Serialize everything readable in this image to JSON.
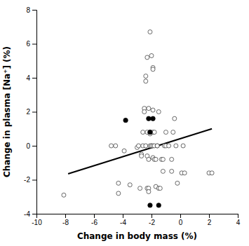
{
  "chart_data": {
    "type": "scatter",
    "xlabel": "Change in body mass (%)",
    "ylabel": "Change in plasma [Na⁺] (%)",
    "xlim": [
      -10,
      4
    ],
    "ylim": [
      -4,
      8
    ],
    "xticks": [
      -10,
      -8,
      -6,
      -4,
      -2,
      0,
      2,
      4
    ],
    "yticks": [
      -4,
      -2,
      0,
      2,
      4,
      6,
      8
    ],
    "series": [
      {
        "type": "scatter",
        "marker": "open",
        "color": "#444444",
        "x": [
          -8.1,
          -4.8,
          -4.5,
          -4.3,
          -4.3,
          -3.9,
          -3.5,
          -3.0,
          -2.9,
          -2.8,
          -2.7,
          -2.7,
          -2.6,
          -2.6,
          -2.5,
          -2.5,
          -2.4,
          -2.4,
          -2.4,
          -2.3,
          -2.3,
          -2.3,
          -2.3,
          -2.2,
          -2.2,
          -2.2,
          -2.2,
          -2.1,
          -2.1,
          -2.1,
          -2.1,
          -2.0,
          -2.0,
          -2.0,
          -1.9,
          -1.9,
          -1.9,
          -1.9,
          -1.9,
          -1.9,
          -1.8,
          -1.8,
          -1.8,
          -1.7,
          -1.7,
          -1.6,
          -1.6,
          -1.5,
          -1.5,
          -1.4,
          -1.3,
          -1.2,
          -1.2,
          -1.1,
          -1.0,
          -1.0,
          -0.8,
          -0.6,
          -0.6,
          -0.5,
          -0.4,
          -0.3,
          -0.2,
          0.1,
          0.2,
          0.3,
          2.0,
          2.2
        ],
        "values": [
          -2.9,
          0.0,
          0.0,
          -2.2,
          -2.8,
          -0.3,
          -2.3,
          -0.1,
          0.0,
          -2.5,
          -0.5,
          -0.6,
          0.8,
          0.0,
          2.2,
          2.0,
          3.8,
          4.1,
          0.0,
          5.2,
          0.8,
          -0.6,
          -2.5,
          2.2,
          -0.8,
          -2.5,
          -2.7,
          6.7,
          0.8,
          0.7,
          0.0,
          5.3,
          0.0,
          0.0,
          4.6,
          4.5,
          2.1,
          0.8,
          0.0,
          -0.7,
          0.8,
          0.0,
          -0.8,
          -0.8,
          -2.4,
          0.0,
          0.0,
          2.0,
          -2.5,
          -2.5,
          -0.8,
          -0.8,
          -1.5,
          0.0,
          0.0,
          0.8,
          0.0,
          -0.8,
          -1.5,
          0.8,
          1.6,
          0.0,
          -2.2,
          -1.6,
          0.0,
          -1.6,
          -1.6,
          -1.6
        ]
      },
      {
        "type": "scatter",
        "marker": "filled",
        "color": "#000000",
        "x": [
          -3.8,
          -2.2,
          -2.1,
          -1.9,
          -1.5,
          -2.1
        ],
        "values": [
          1.5,
          1.6,
          0.8,
          1.6,
          -3.5,
          -3.5
        ]
      },
      {
        "type": "line",
        "line_style": "solid",
        "color": "#000000",
        "x": [
          -7.8,
          2.2
        ],
        "values": [
          -1.65,
          1.0
        ]
      }
    ]
  }
}
